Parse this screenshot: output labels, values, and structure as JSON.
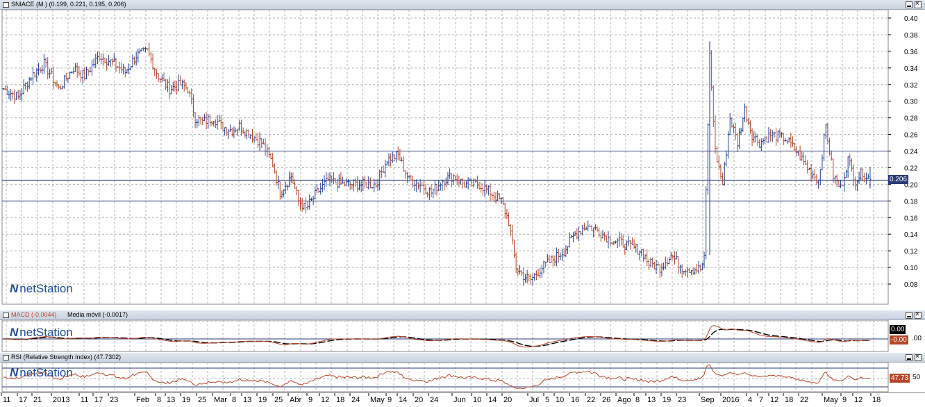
{
  "price_panel": {
    "title": "SNIACE (M.) (0.199, 0.221, 0.195, 0.206)",
    "current_price_label": "0.206",
    "logo": "netStation",
    "y_ticks": [
      "0.40",
      "0.38",
      "0.36",
      "0.34",
      "0.32",
      "0.30",
      "0.28",
      "0.26",
      "0.24",
      "0.22",
      "0.20",
      "0.18",
      "0.16",
      "0.14",
      "0.12",
      "0.10",
      "0.08"
    ],
    "horizontal_lines": [
      0.24,
      0.205,
      0.18
    ]
  },
  "macd_panel": {
    "title": "MACD (-0.0044)",
    "ma_label": "Media móvil (-0.0017)",
    "badge_ma": "0.00",
    "badge_macd": "-0.00",
    "axis_label": ".00",
    "logo": "netStation"
  },
  "rsi_panel": {
    "title": "RSI (Relative Strength Index) (47.7302)",
    "badge": "47.73",
    "axis_label": "50",
    "logo": "netStation"
  },
  "x_axis_labels": [
    {
      "text": "11",
      "x": 4
    },
    {
      "text": "17",
      "x": 27
    },
    {
      "text": "21",
      "x": 48
    },
    {
      "text": "2013",
      "x": 76
    },
    {
      "text": "11",
      "x": 116
    },
    {
      "text": "17",
      "x": 136
    },
    {
      "text": "23",
      "x": 158
    },
    {
      "text": "Feb",
      "x": 196
    },
    {
      "text": "8",
      "x": 226
    },
    {
      "text": "13",
      "x": 240
    },
    {
      "text": "19",
      "x": 262
    },
    {
      "text": "25",
      "x": 285
    },
    {
      "text": "Mar",
      "x": 308
    },
    {
      "text": "8",
      "x": 334
    },
    {
      "text": "13",
      "x": 350
    },
    {
      "text": "19",
      "x": 372
    },
    {
      "text": "25",
      "x": 395
    },
    {
      "text": "Abr",
      "x": 417
    },
    {
      "text": "9",
      "x": 444
    },
    {
      "text": "12",
      "x": 462
    },
    {
      "text": "18",
      "x": 484
    },
    {
      "text": "24",
      "x": 506
    },
    {
      "text": "May",
      "x": 533
    },
    {
      "text": "9",
      "x": 558
    },
    {
      "text": "14",
      "x": 574
    },
    {
      "text": "20",
      "x": 597
    },
    {
      "text": "24",
      "x": 619
    },
    {
      "text": "Jun",
      "x": 653
    },
    {
      "text": "10",
      "x": 681
    },
    {
      "text": "14",
      "x": 703
    },
    {
      "text": "20",
      "x": 725
    },
    {
      "text": "Jul",
      "x": 762
    },
    {
      "text": "5",
      "x": 785
    },
    {
      "text": "10",
      "x": 800
    },
    {
      "text": "16",
      "x": 822
    },
    {
      "text": "22",
      "x": 845
    },
    {
      "text": "26",
      "x": 867
    },
    {
      "text": "Ago",
      "x": 889
    },
    {
      "text": "8",
      "x": 915
    },
    {
      "text": "13",
      "x": 932
    },
    {
      "text": "19",
      "x": 954
    },
    {
      "text": "23",
      "x": 976
    },
    {
      "text": "Sep",
      "x": 1009
    },
    {
      "text": "2016",
      "x": 1040
    },
    {
      "text": "4",
      "x": 1077
    },
    {
      "text": "7",
      "x": 1093
    },
    {
      "text": "12",
      "x": 1109
    },
    {
      "text": "18",
      "x": 1130
    },
    {
      "text": "22",
      "x": 1152
    },
    {
      "text": "May",
      "x": 1186
    },
    {
      "text": "9",
      "x": 1213
    },
    {
      "text": "12",
      "x": 1230
    },
    {
      "text": "18",
      "x": 1256
    }
  ],
  "colors": {
    "up_bar": "#1f3f9b",
    "down_bar": "#b8462a",
    "grid": "#b4b4b4",
    "hline": "#2a3a7a",
    "macd_line": "#b8462a",
    "ma_line": "#000000",
    "rsi_line": "#b8462a",
    "title_bg": "#d3dbe6",
    "price_badge_bg": "#2a3a7a"
  },
  "chart_data": {
    "type": "ohlc",
    "title": "SNIACE (M.)",
    "ylim": [
      0.06,
      0.41
    ],
    "last_ohlc": {
      "open": 0.199,
      "high": 0.221,
      "close": 0.206,
      "low": 0.195
    },
    "anchors_close": [
      [
        0,
        0.315
      ],
      [
        8,
        0.305
      ],
      [
        15,
        0.33
      ],
      [
        22,
        0.345
      ],
      [
        30,
        0.315
      ],
      [
        38,
        0.34
      ],
      [
        44,
        0.33
      ],
      [
        52,
        0.355
      ],
      [
        60,
        0.345
      ],
      [
        66,
        0.335
      ],
      [
        72,
        0.355
      ],
      [
        78,
        0.36
      ],
      [
        84,
        0.33
      ],
      [
        90,
        0.315
      ],
      [
        96,
        0.32
      ],
      [
        100,
        0.315
      ],
      [
        104,
        0.28
      ],
      [
        108,
        0.275
      ],
      [
        114,
        0.28
      ],
      [
        118,
        0.27
      ],
      [
        124,
        0.265
      ],
      [
        128,
        0.27
      ],
      [
        134,
        0.26
      ],
      [
        140,
        0.25
      ],
      [
        146,
        0.225
      ],
      [
        150,
        0.19
      ],
      [
        156,
        0.21
      ],
      [
        160,
        0.18
      ],
      [
        164,
        0.17
      ],
      [
        170,
        0.19
      ],
      [
        176,
        0.205
      ],
      [
        184,
        0.2
      ],
      [
        194,
        0.2
      ],
      [
        202,
        0.2
      ],
      [
        208,
        0.23
      ],
      [
        214,
        0.235
      ],
      [
        220,
        0.205
      ],
      [
        226,
        0.2
      ],
      [
        232,
        0.19
      ],
      [
        238,
        0.205
      ],
      [
        244,
        0.21
      ],
      [
        250,
        0.2
      ],
      [
        258,
        0.2
      ],
      [
        264,
        0.19
      ],
      [
        270,
        0.18
      ],
      [
        274,
        0.155
      ],
      [
        278,
        0.1
      ],
      [
        282,
        0.09
      ],
      [
        286,
        0.085
      ],
      [
        292,
        0.1
      ],
      [
        298,
        0.11
      ],
      [
        304,
        0.12
      ],
      [
        310,
        0.14
      ],
      [
        316,
        0.15
      ],
      [
        322,
        0.145
      ],
      [
        328,
        0.135
      ],
      [
        334,
        0.13
      ],
      [
        340,
        0.125
      ],
      [
        346,
        0.12
      ],
      [
        350,
        0.105
      ],
      [
        356,
        0.1
      ],
      [
        362,
        0.115
      ],
      [
        368,
        0.1
      ],
      [
        374,
        0.098
      ],
      [
        378,
        0.098
      ],
      [
        380,
        0.11
      ],
      [
        383,
        0.355
      ],
      [
        386,
        0.24
      ],
      [
        390,
        0.2
      ],
      [
        394,
        0.28
      ],
      [
        398,
        0.25
      ],
      [
        402,
        0.29
      ],
      [
        406,
        0.26
      ],
      [
        410,
        0.25
      ],
      [
        416,
        0.26
      ],
      [
        424,
        0.255
      ],
      [
        430,
        0.24
      ],
      [
        436,
        0.22
      ],
      [
        442,
        0.205
      ],
      [
        446,
        0.27
      ],
      [
        450,
        0.21
      ],
      [
        454,
        0.195
      ],
      [
        458,
        0.23
      ],
      [
        462,
        0.205
      ],
      [
        466,
        0.215
      ],
      [
        470,
        0.206
      ]
    ],
    "n_bars": 471
  }
}
